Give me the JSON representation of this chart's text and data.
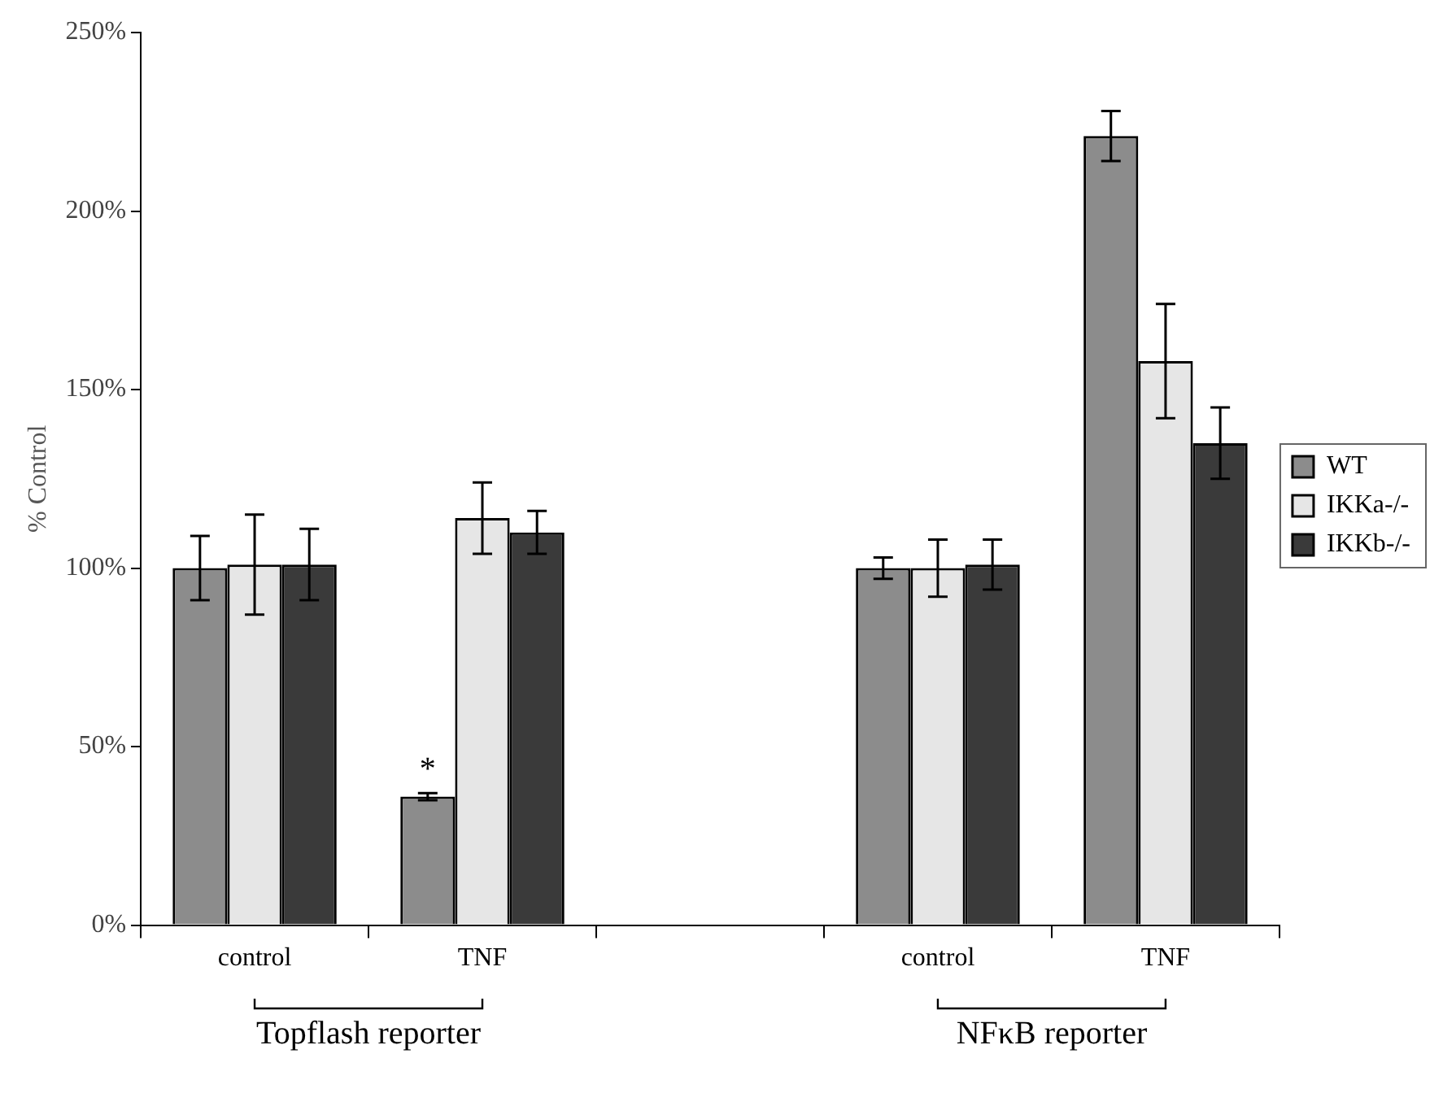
{
  "chart_data": {
    "type": "bar",
    "ylabel": "% Control",
    "categories": [
      "control",
      "TNF",
      null,
      "control",
      "TNF"
    ],
    "series": [
      {
        "name": "WT",
        "color": "#8c8c8c",
        "values": [
          100,
          36,
          null,
          100,
          221
        ],
        "errors": [
          9,
          1,
          null,
          3,
          7
        ]
      },
      {
        "name": "IKKa-/-",
        "color": "#e6e6e6",
        "values": [
          101,
          114,
          null,
          100,
          158
        ],
        "errors": [
          14,
          10,
          null,
          8,
          16
        ]
      },
      {
        "name": "IKKb-/-",
        "color": "#3a3a3a",
        "values": [
          101,
          110,
          null,
          101,
          135
        ],
        "errors": [
          10,
          6,
          null,
          7,
          10
        ]
      }
    ],
    "ylim": [
      0,
      250
    ],
    "yticks": [
      {
        "value": 0,
        "label": "0%"
      },
      {
        "value": 50,
        "label": "50%"
      },
      {
        "value": 100,
        "label": "100%"
      },
      {
        "value": 150,
        "label": "150%"
      },
      {
        "value": 200,
        "label": "200%"
      },
      {
        "value": 250,
        "label": "250%"
      }
    ],
    "annotations": [
      "Topflash reporter",
      "NFκB reporter",
      "*"
    ],
    "legend": "right",
    "grid": false
  }
}
